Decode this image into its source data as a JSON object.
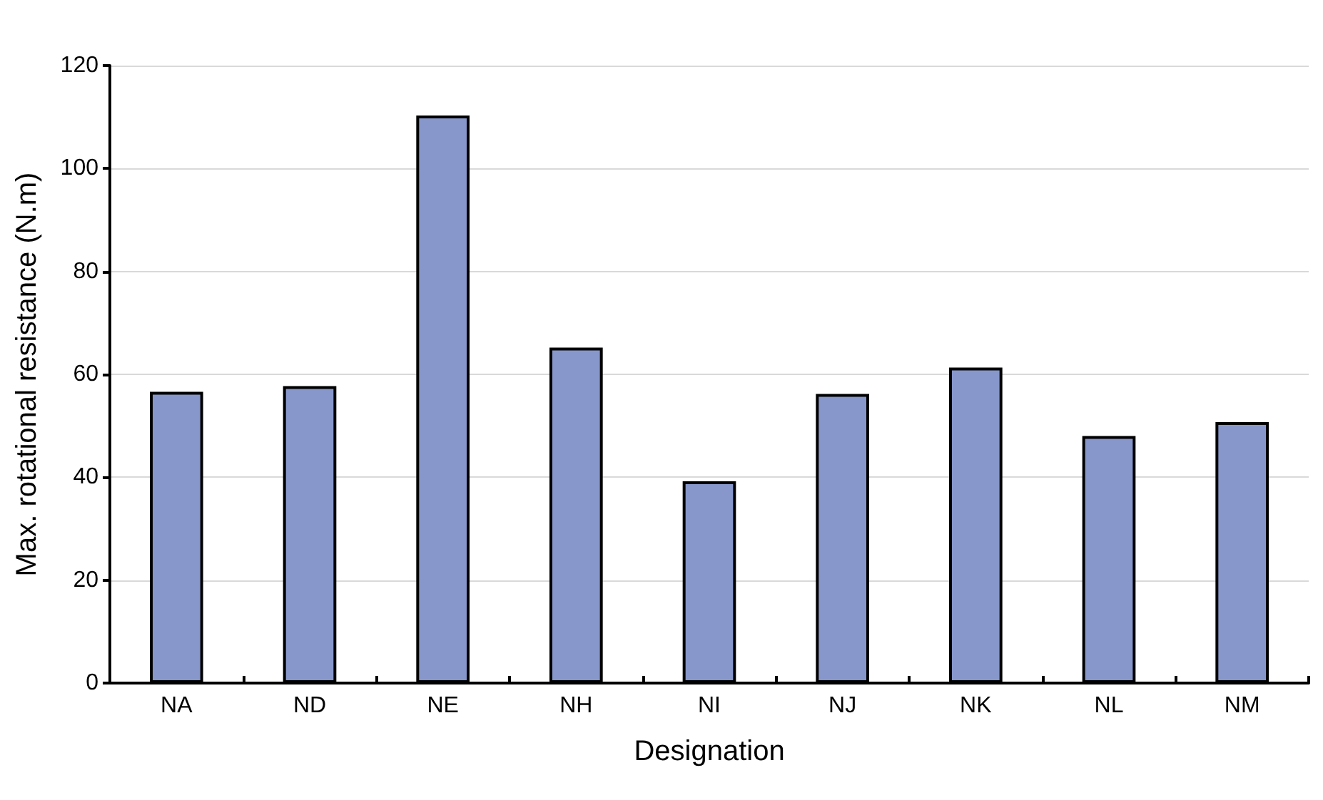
{
  "chart_data": {
    "type": "bar",
    "xlabel": "Designation",
    "ylabel": "Max. rotational resistance (N.m)",
    "categories": [
      "NA",
      "ND",
      "NE",
      "NH",
      "NI",
      "NJ",
      "NK",
      "NL",
      "NM"
    ],
    "values": [
      56.6,
      57.7,
      110.3,
      65.2,
      39.2,
      56.2,
      61.3,
      48.0,
      50.7
    ],
    "color": "#8797cb",
    "ylim": [
      0,
      120
    ],
    "yticks": [
      0,
      20,
      40,
      60,
      80,
      100,
      120
    ],
    "grid": "y"
  }
}
